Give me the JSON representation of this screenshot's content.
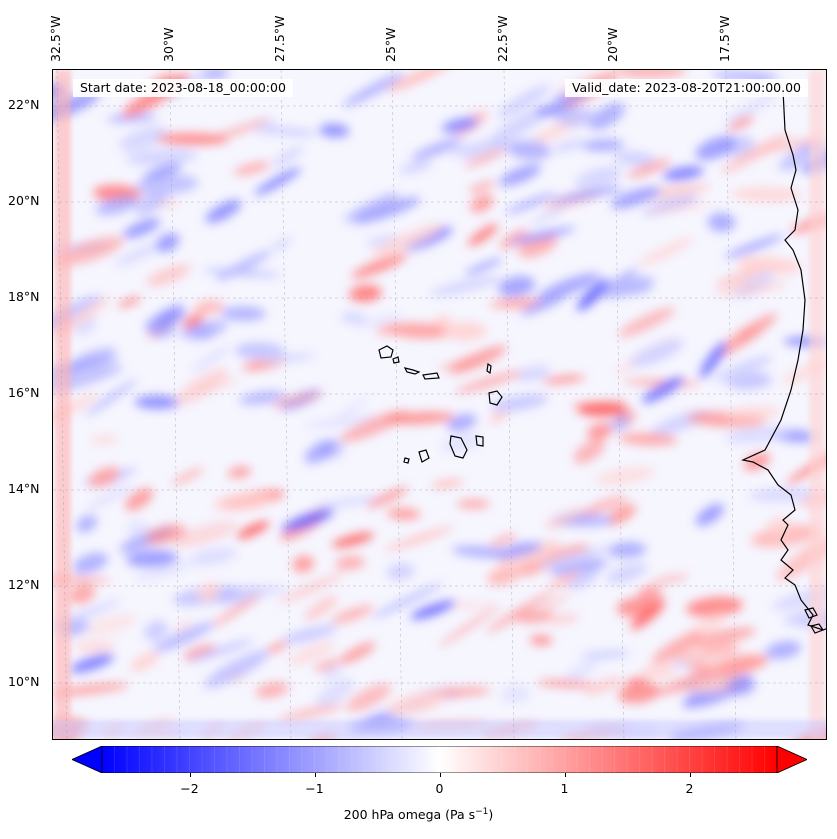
{
  "map": {
    "title": "",
    "start_date_text": "Start date: 2023-08-18_00:00:00",
    "valid_date_text": "Valid_date: 2023-08-20T21:00:00.00",
    "lon_labels": [
      "32.5°W",
      "30°W",
      "27.5°W",
      "25°W",
      "22.5°W",
      "20°W",
      "17.5°W"
    ],
    "lat_labels": [
      "22°N",
      "20°N",
      "18°N",
      "16°N",
      "14°N",
      "12°N",
      "10°N"
    ],
    "lon_extent_deg": [
      -32.6,
      -15.4
    ],
    "lat_extent_deg": [
      8.8,
      22.8
    ],
    "gridlines": true,
    "field": "200 hPa omega",
    "colormap": "bwr",
    "colors": {
      "negative": "#0000ff",
      "zero": "#ffffff",
      "positive": "#ff0000",
      "coastline": "#000000"
    }
  },
  "colorbar": {
    "label_main": "200 hPa omega (Pa s",
    "label_exp": "−1",
    "label_close": ")",
    "range": [
      -2.7,
      2.7
    ],
    "ticks": [
      "−2",
      "−1",
      "0",
      "1",
      "2"
    ],
    "tick_values": [
      -2,
      -1,
      0,
      1,
      2
    ],
    "extend": "both"
  }
}
